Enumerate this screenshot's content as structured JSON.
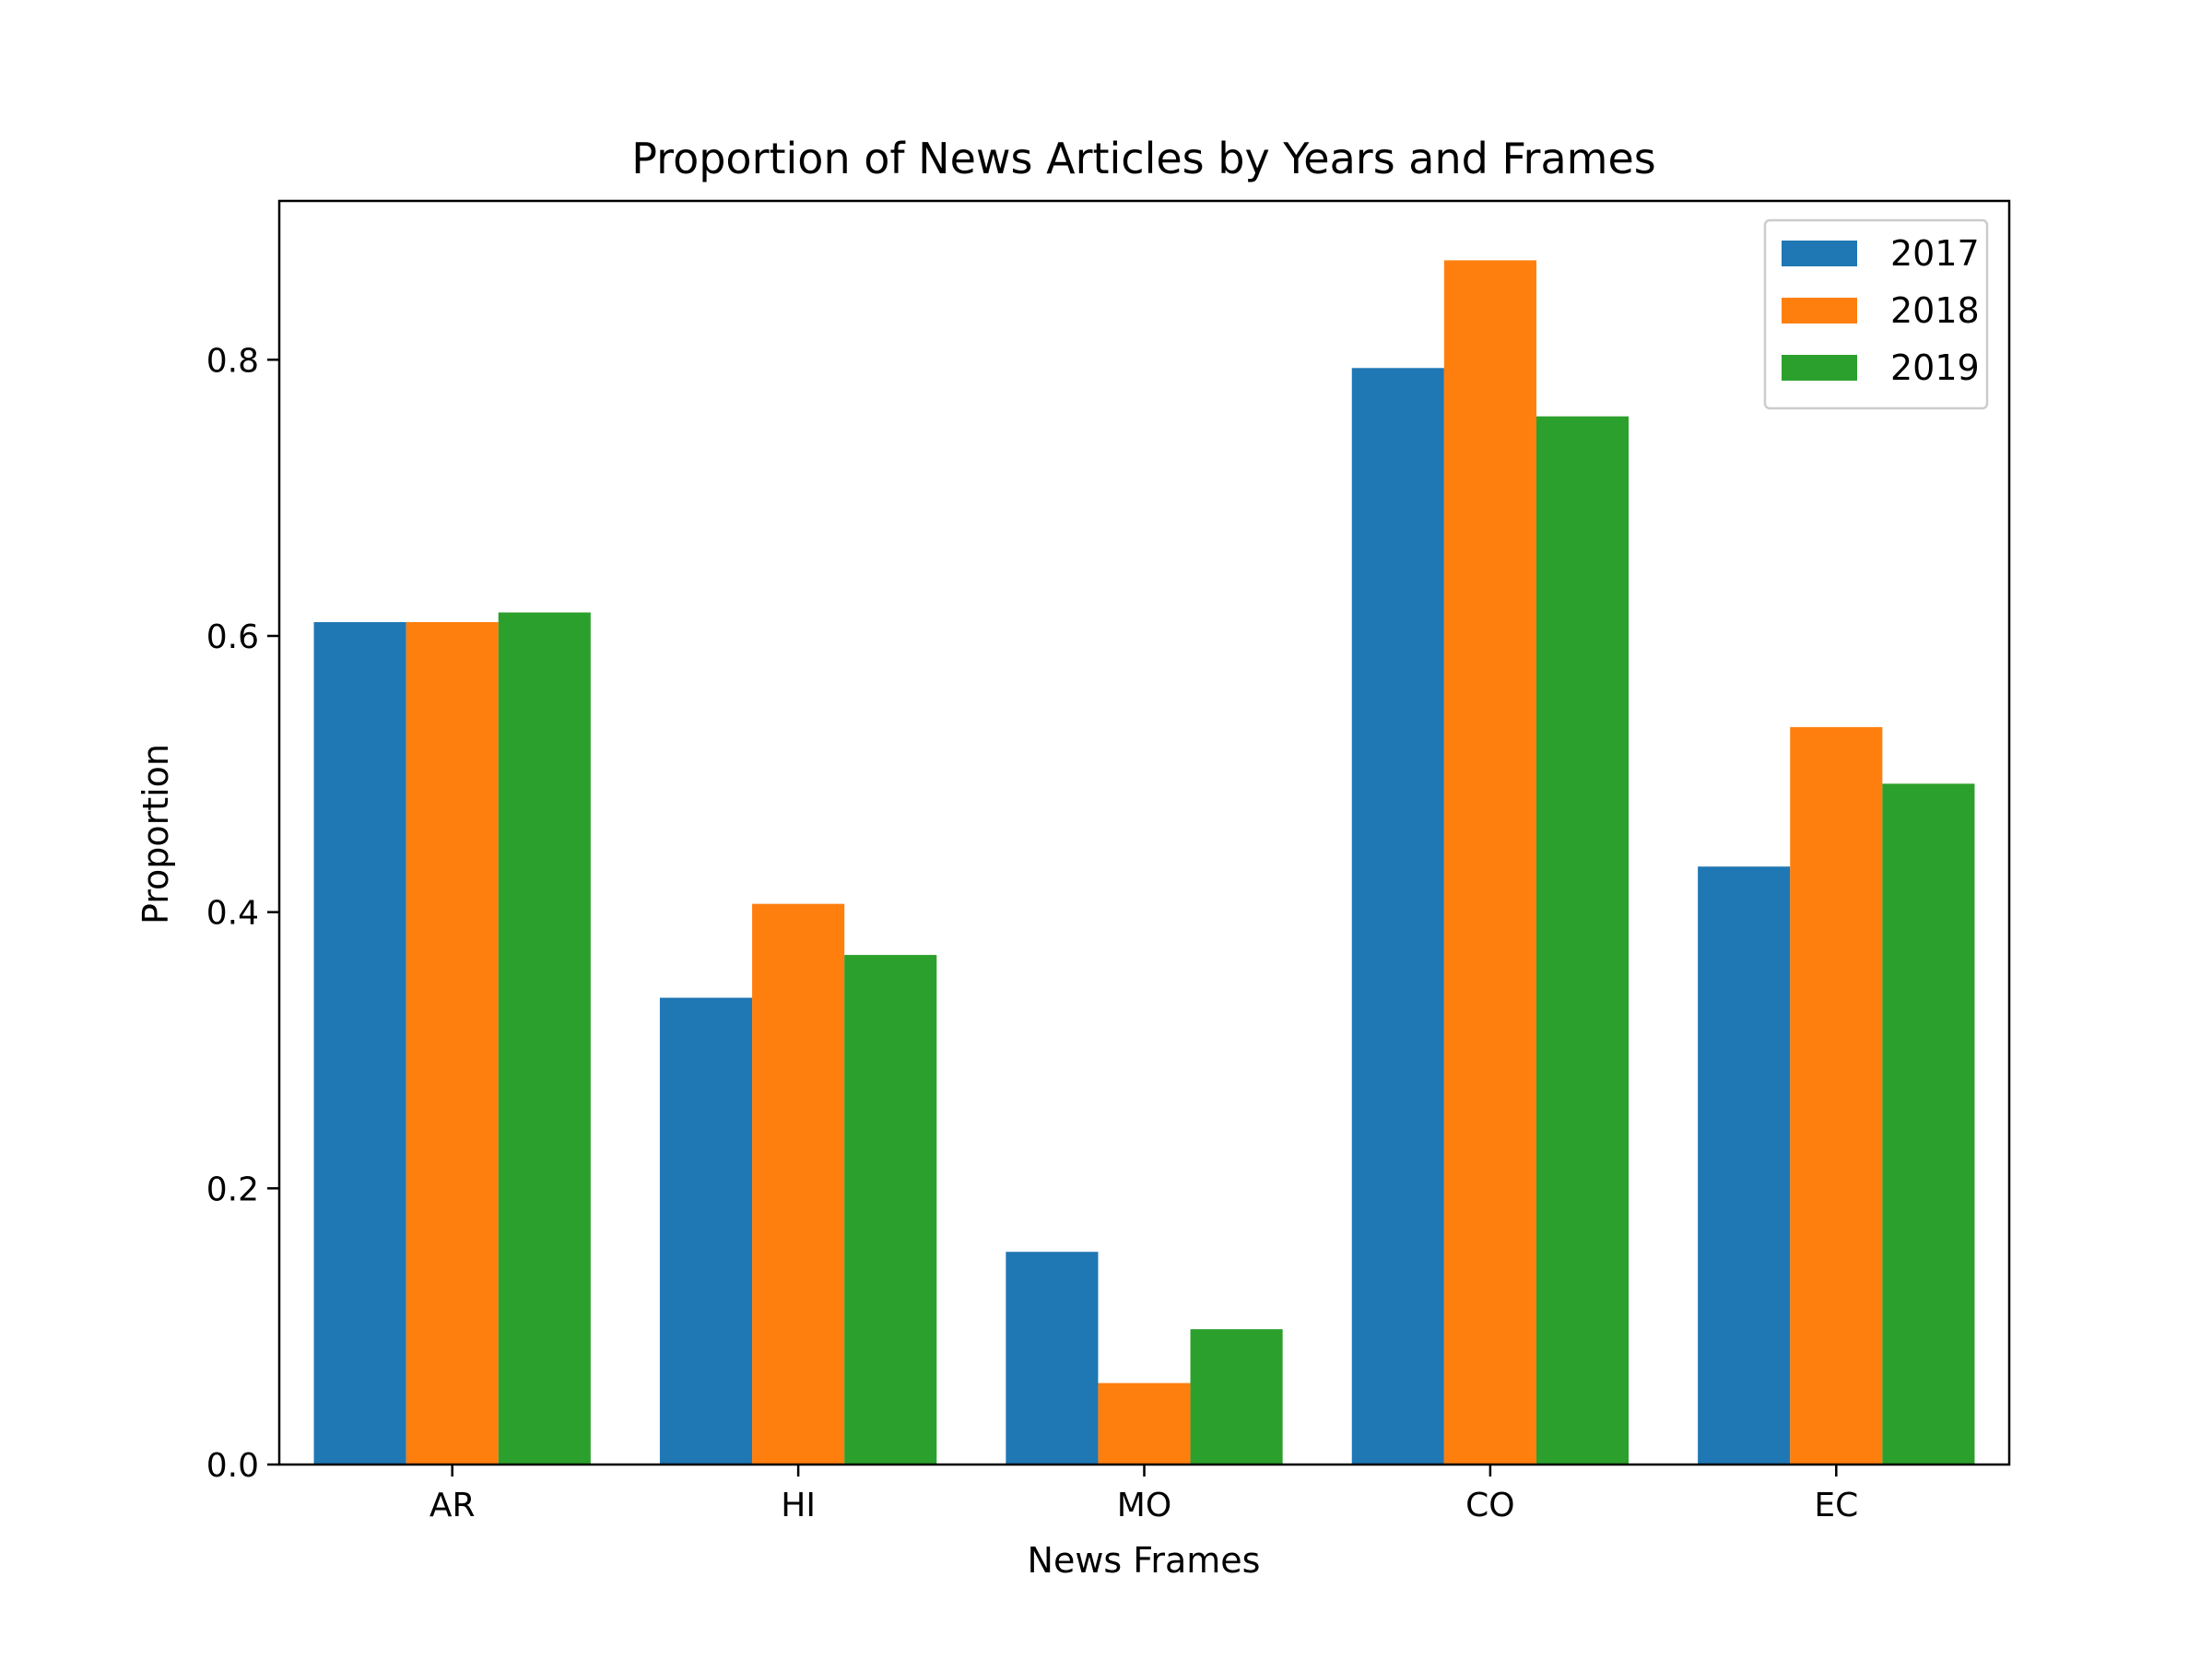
{
  "chart_data": {
    "type": "bar",
    "title": "Proportion of News Articles by Years and Frames",
    "xlabel": "News Frames",
    "ylabel": "Proportion",
    "categories": [
      "AR",
      "HI",
      "MO",
      "CO",
      "EC"
    ],
    "series": [
      {
        "name": "2017",
        "color": "#1f77b4",
        "values": [
          0.61,
          0.338,
          0.154,
          0.794,
          0.433
        ]
      },
      {
        "name": "2018",
        "color": "#ff7f0e",
        "values": [
          0.61,
          0.406,
          0.059,
          0.872,
          0.534
        ]
      },
      {
        "name": "2019",
        "color": "#2ca02c",
        "values": [
          0.617,
          0.369,
          0.098,
          0.759,
          0.493
        ]
      }
    ],
    "ylim": [
      0,
      0.915
    ],
    "yticks": [
      0.0,
      0.2,
      0.4,
      0.6,
      0.8
    ],
    "ytick_labels": [
      "0.0",
      "0.2",
      "0.4",
      "0.6",
      "0.8"
    ],
    "grid": false,
    "legend_position": "top-right"
  }
}
